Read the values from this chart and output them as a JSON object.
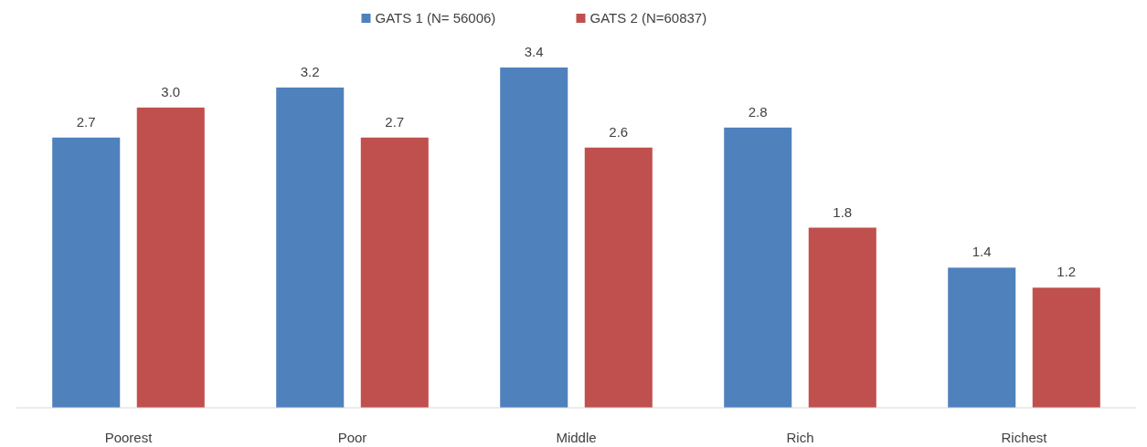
{
  "chart_data": {
    "type": "bar",
    "categories": [
      "Poorest",
      "Poor",
      "Middle",
      "Rich",
      "Richest"
    ],
    "series": [
      {
        "name": "GATS 1 (N= 56006)",
        "color": "#4f81bd",
        "values": [
          2.7,
          3.2,
          3.4,
          2.8,
          1.4
        ],
        "value_labels": [
          "2.7",
          "3.2",
          "3.4",
          "2.8",
          "1.4"
        ]
      },
      {
        "name": "GATS 2 (N=60837)",
        "color": "#c0504d",
        "values": [
          3.0,
          2.7,
          2.6,
          1.8,
          1.2
        ],
        "value_labels": [
          "3.0",
          "2.7",
          "2.6",
          "1.8",
          "1.2"
        ]
      }
    ],
    "legend": "top",
    "grid": false
  }
}
